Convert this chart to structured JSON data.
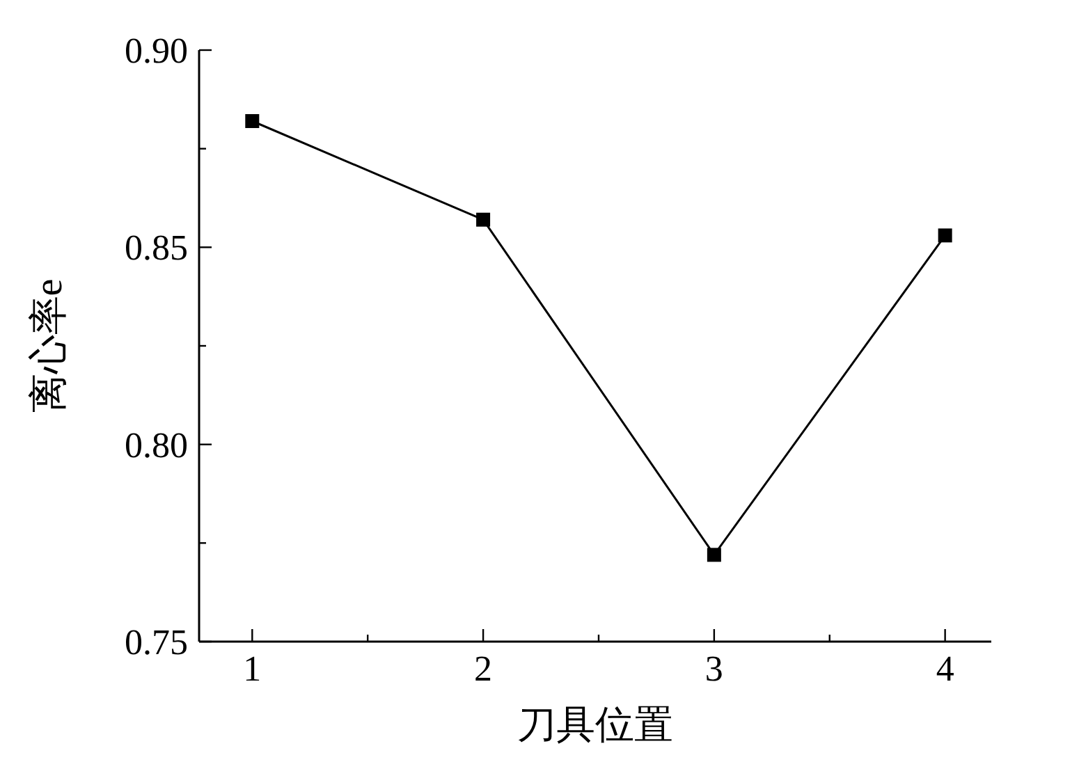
{
  "chart_data": {
    "type": "line",
    "xlabel": "刀具位置",
    "ylabel": "离心率e",
    "x": [
      1,
      2,
      3,
      4
    ],
    "series": [
      {
        "color": "#000000",
        "values": [
          0.882,
          0.857,
          0.772,
          0.853
        ]
      }
    ],
    "xlim": [
      0.77,
      4.2
    ],
    "ylim": [
      0.75,
      0.9
    ],
    "xticks": [
      1,
      {
        "value": 1.5,
        "label": null
      },
      2,
      {
        "value": 2.5,
        "label": null
      },
      3,
      {
        "value": 3.5,
        "label": null
      },
      4
    ],
    "yticks": [
      {
        "value": 0.75,
        "label": "0.75"
      },
      {
        "value": 0.775,
        "label": null
      },
      {
        "value": 0.8,
        "label": "0.80"
      },
      {
        "value": 0.825,
        "label": null
      },
      {
        "value": 0.85,
        "label": "0.85"
      },
      {
        "value": 0.875,
        "label": null
      },
      {
        "value": 0.9,
        "label": "0.90"
      }
    ],
    "grid": false,
    "marker": "square",
    "line_style": "solid"
  }
}
